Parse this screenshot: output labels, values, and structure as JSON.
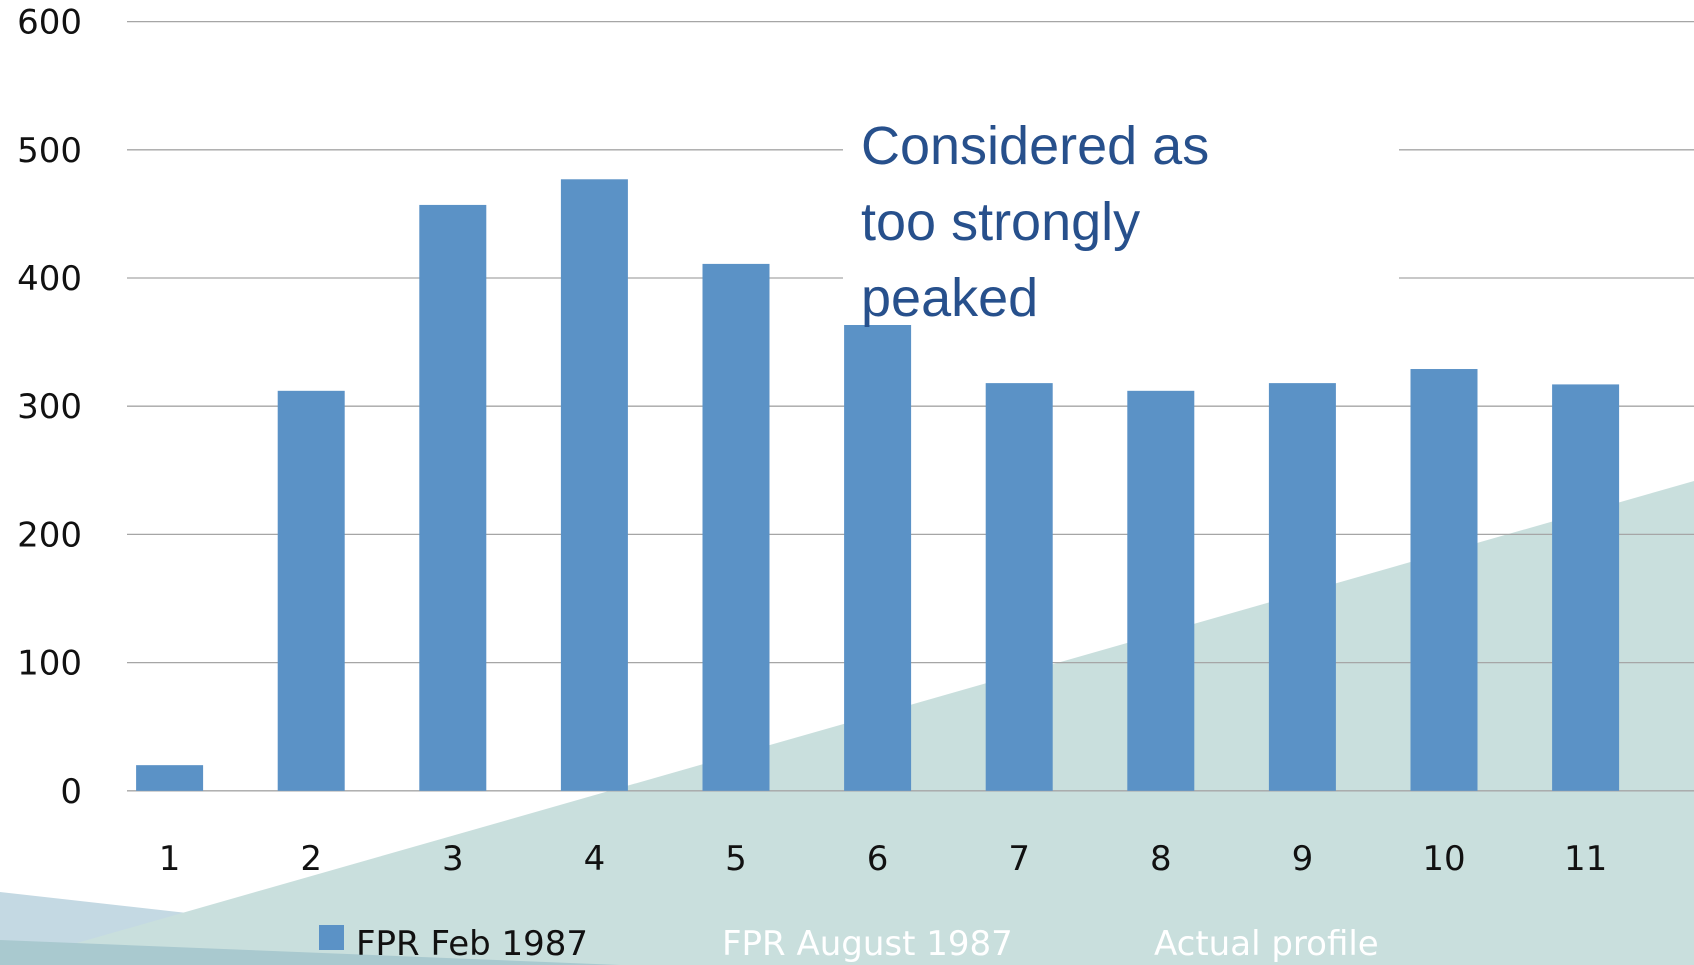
{
  "chart_data": {
    "type": "bar",
    "categories": [
      "1",
      "2",
      "3",
      "4",
      "5",
      "6",
      "7",
      "8",
      "9",
      "10",
      "11"
    ],
    "series": [
      {
        "name": "FPR Feb 1987",
        "color": "#5b92c6",
        "values": [
          20,
          312,
          457,
          477,
          411,
          376,
          318,
          312,
          318,
          329,
          317
        ]
      },
      {
        "name": "FPR August 1987",
        "values": [
          null,
          null,
          null,
          null,
          null,
          null,
          null,
          null,
          null,
          null,
          null
        ]
      },
      {
        "name": "Actual profile",
        "values": [
          null,
          null,
          null,
          null,
          null,
          null,
          null,
          null,
          null,
          null,
          null
        ]
      }
    ],
    "ylim": [
      0,
      600
    ],
    "yticks": [
      0,
      100,
      200,
      300,
      400,
      500,
      600
    ],
    "grid": true,
    "legend": "bottom",
    "annotation": [
      "Considered as",
      "too strongly",
      "peaked"
    ]
  }
}
